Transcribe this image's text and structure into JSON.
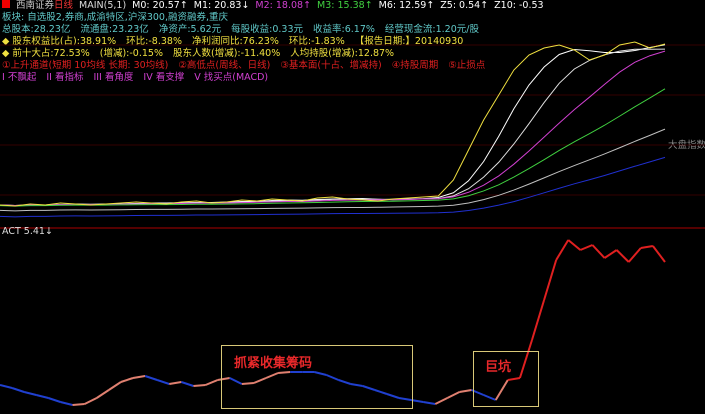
{
  "header": {
    "stock_name": "西南证券",
    "period": "日线",
    "main": "MAIN(5,1)",
    "ma": [
      {
        "label": "M0: 20.57↑",
        "color": "#ffffff"
      },
      {
        "label": "M1: 20.83↓",
        "color": "#ffffff"
      },
      {
        "label": "M2: 18.08↑",
        "color": "#d040d0"
      },
      {
        "label": "M3: 15.38↑",
        "color": "#40d040"
      },
      {
        "label": "M6: 12.59↑",
        "color": "#ffffff"
      },
      {
        "label": "Z5: 0.54↑",
        "color": "#ffffff"
      },
      {
        "label": "Z10: -0.53",
        "color": "#ffffff"
      }
    ]
  },
  "info": {
    "sector": "板块: 自选股2,券商,成渝特区,沪深300,融资融券,重庆",
    "row3": [
      "总股本:28.23亿",
      "流通盘:23.23亿",
      "净资产:5.62元",
      "每股收益:0.33元",
      "收益率:6.17%",
      "经营现金流:1.20元/股"
    ],
    "row4": [
      "股东权益比(占):38.91%",
      "环比:-8.38%",
      "净利润同比:76.23%",
      "环比:-1.83%",
      "【报告日期:】20140930"
    ],
    "row5": [
      "前十大占:72.53%",
      "(增减):-0.15%",
      "股东人数(增减):-11.40%",
      "人均持股(增减):12.87%"
    ],
    "row6": [
      "①上升通道(短期 10均线 长期: 30均线)",
      "②高低点(周线、日线)",
      "③基本面(十占、增减持)",
      "④持股周期",
      "⑤止损点"
    ],
    "row7": [
      "I 不飘起",
      "II 看指标",
      "III 看角度",
      "IV 看支撑",
      "V 找买点(MACD)"
    ]
  },
  "side_label": "大盘指数",
  "indicator": {
    "label": "ACT 5.41↓"
  },
  "annotations": [
    {
      "text": "抓紧收集筹码"
    },
    {
      "text": "巨坑"
    }
  ],
  "colors": {
    "bg": "#000000",
    "up": "#e8282a",
    "down": "#40d8e8",
    "yellow": "#f0e040",
    "cyan": "#60c8c8",
    "act_low": "#2040d0",
    "act_high": "#e02020"
  },
  "chart_data": {
    "type": "line",
    "price_series": [
      205,
      206,
      204,
      205,
      203,
      204,
      205,
      204,
      203,
      202,
      203,
      204,
      202,
      201,
      203,
      202,
      200,
      201,
      199,
      200,
      201,
      198,
      197,
      199,
      200,
      201,
      199,
      198,
      197,
      196,
      180,
      150,
      120,
      95,
      70,
      55,
      48,
      45,
      50,
      60,
      55,
      45,
      42,
      48,
      44
    ],
    "act_series": [
      385,
      388,
      392,
      395,
      398,
      402,
      405,
      404,
      398,
      390,
      382,
      378,
      376,
      380,
      384,
      382,
      386,
      385,
      380,
      378,
      384,
      383,
      378,
      373,
      372,
      372,
      372,
      375,
      380,
      384,
      386,
      390,
      394,
      398,
      400,
      402,
      404,
      398,
      392,
      390,
      395,
      400,
      380,
      378,
      340,
      300,
      260,
      240,
      250,
      245,
      258,
      250,
      262,
      248,
      246,
      262
    ]
  }
}
